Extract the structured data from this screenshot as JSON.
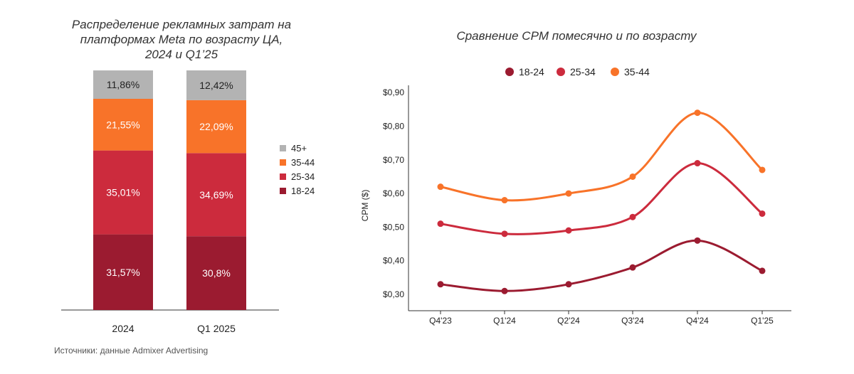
{
  "source_note": "Источники: данные Admixer Advertising",
  "chart_data": [
    {
      "type": "bar",
      "stacked": true,
      "title": "Распределение рекламных затрат на платформах Meta по возрасту ЦА, 2024 и Q1’25",
      "title_lines": [
        "Распределение рекламных затрат на",
        "платформах Meta по возрасту ЦА,",
        "2024 и Q1’25"
      ],
      "categories": [
        "2024",
        "Q1 2025"
      ],
      "series": [
        {
          "name": "18-24",
          "color": "#9b1b30",
          "values": [
            31.57,
            30.8
          ],
          "labels": [
            "31,57%",
            "30,8%"
          ]
        },
        {
          "name": "25-34",
          "color": "#cc2b3d",
          "values": [
            35.01,
            34.69
          ],
          "labels": [
            "35,01%",
            "34,69%"
          ]
        },
        {
          "name": "35-44",
          "color": "#f87329",
          "values": [
            21.55,
            22.09
          ],
          "labels": [
            "21,55%",
            "22,09%"
          ]
        },
        {
          "name": "45+",
          "color": "#b3b3b3",
          "values": [
            11.86,
            12.42
          ],
          "labels": [
            "11,86%",
            "12,42%"
          ]
        }
      ],
      "legend_order": [
        "45+",
        "35-44",
        "25-34",
        "18-24"
      ],
      "legend_position": "right",
      "ylim": [
        0,
        100
      ],
      "grid": false
    },
    {
      "type": "line",
      "title": "Сравнение CPM помесячно и по возрасту",
      "x": [
        "Q4'23",
        "Q1'24",
        "Q2'24",
        "Q3'24",
        "Q4'24",
        "Q1'25"
      ],
      "ylabel": "CPM ($)",
      "ylim": [
        0.28,
        0.9
      ],
      "yticks": [
        0.3,
        0.4,
        0.5,
        0.6,
        0.7,
        0.8,
        0.9
      ],
      "ytick_labels": [
        "$0,30",
        "$0,40",
        "$0,50",
        "$0,60",
        "$0,70",
        "$0,80",
        "$0,90"
      ],
      "series": [
        {
          "name": "18-24",
          "color": "#9b1b30",
          "values": [
            0.33,
            0.31,
            0.33,
            0.38,
            0.46,
            0.37
          ]
        },
        {
          "name": "25-34",
          "color": "#cc2b3d",
          "values": [
            0.51,
            0.48,
            0.49,
            0.53,
            0.69,
            0.54
          ]
        },
        {
          "name": "35-44",
          "color": "#f87329",
          "values": [
            0.62,
            0.58,
            0.6,
            0.65,
            0.84,
            0.67
          ]
        }
      ],
      "legend_position": "top",
      "grid": false
    }
  ]
}
